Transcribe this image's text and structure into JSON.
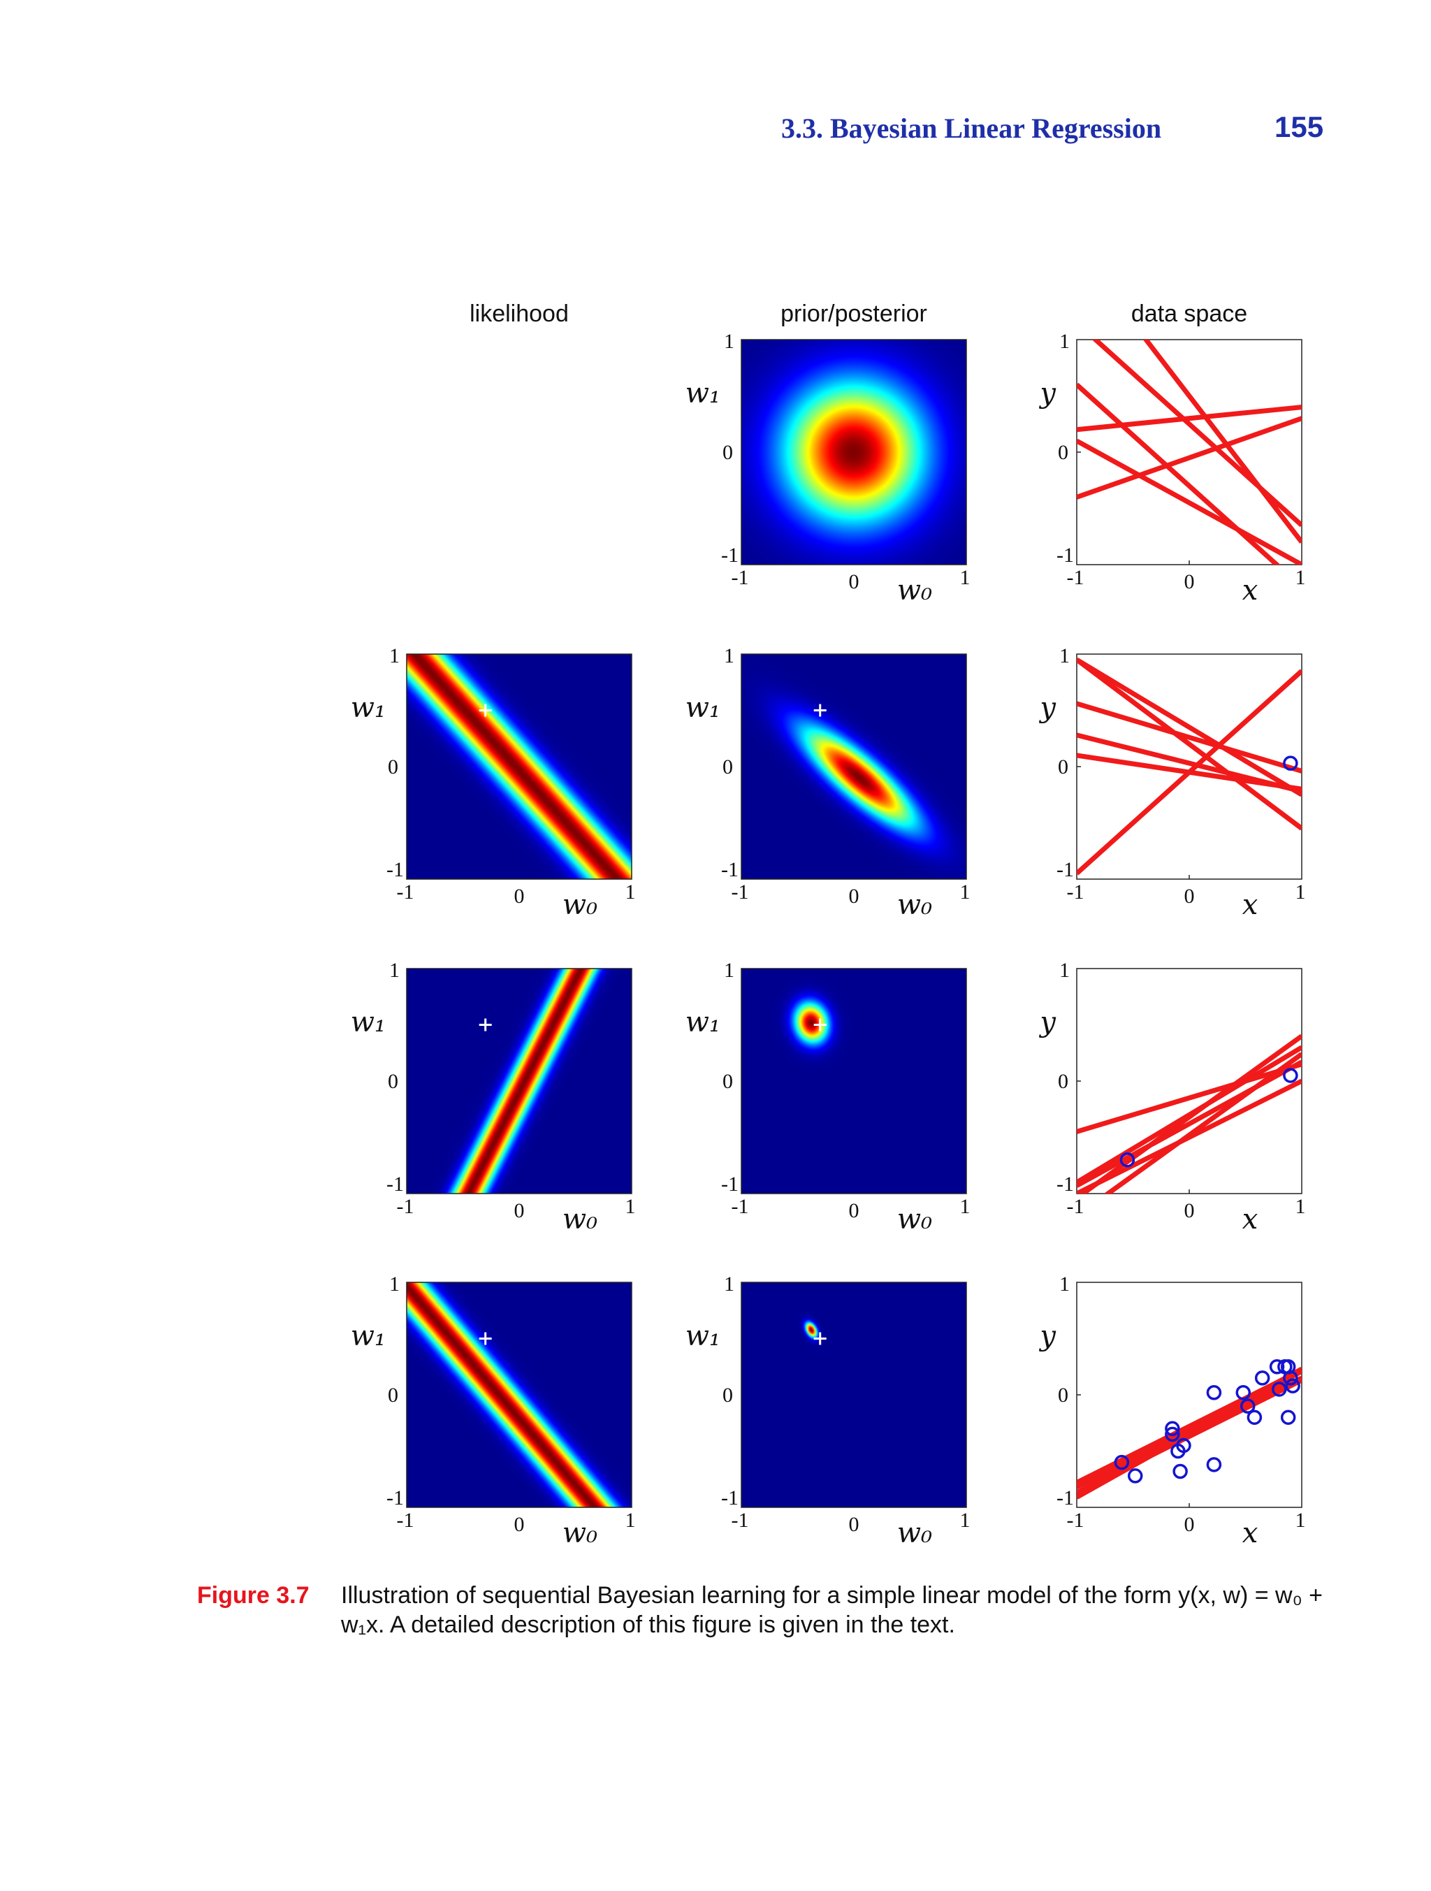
{
  "header": {
    "section_title": "3.3. Bayesian Linear Regression",
    "page_number": "155"
  },
  "figure": {
    "column_titles": [
      "likelihood",
      "prior/posterior",
      "data space"
    ],
    "tick_labels": {
      "min": "-1",
      "mid": "0",
      "max": "1"
    },
    "param_axes": {
      "x": "w₀",
      "y": "w₁"
    },
    "data_axes": {
      "x": "x",
      "y": "y"
    },
    "true_params": {
      "w0": -0.3,
      "w1": 0.5
    },
    "colormap": [
      "#00008f",
      "#0000ff",
      "#00ffff",
      "#ffff00",
      "#ff0000",
      "#800000"
    ],
    "line_color": "#f11a1a",
    "point_color": "#1414d0"
  },
  "chart_data": [
    {
      "type": "heatmap",
      "row": 0,
      "column": "prior/posterior",
      "xlim": [
        -1,
        1
      ],
      "ylim": [
        -1,
        1
      ],
      "gaussian": {
        "mean": [
          0,
          0
        ],
        "sx": 0.42,
        "sy": 0.42,
        "rho": 0
      },
      "marker": null
    },
    {
      "type": "line",
      "row": 0,
      "column": "data space",
      "xlim": [
        -1,
        1
      ],
      "ylim": [
        -1,
        1
      ],
      "lines": [
        [
          -0.3,
          -0.9
        ],
        [
          0.3,
          0.1
        ],
        [
          0.25,
          -0.9
        ],
        [
          -0.05,
          0.35
        ],
        [
          -0.45,
          -0.55
        ],
        [
          0.5,
          -1.3
        ]
      ],
      "points": []
    },
    {
      "type": "heatmap",
      "row": 1,
      "column": "likelihood",
      "xlim": [
        -1,
        1
      ],
      "ylim": [
        -1,
        1
      ],
      "band": {
        "a": 1,
        "b": 0.9,
        "c": 0.03,
        "sigma": 0.13
      },
      "marker": [
        -0.3,
        0.5
      ]
    },
    {
      "type": "heatmap",
      "row": 1,
      "column": "prior/posterior",
      "xlim": [
        -1,
        1
      ],
      "ylim": [
        -1,
        1
      ],
      "gaussian": {
        "mean": [
          0.05,
          -0.1
        ],
        "sx": 0.34,
        "sy": 0.3,
        "rho": -0.85
      },
      "marker": [
        -0.3,
        0.5
      ]
    },
    {
      "type": "line",
      "row": 1,
      "column": "data space",
      "xlim": [
        -1,
        1
      ],
      "ylim": [
        -1,
        1
      ],
      "lines": [
        [
          0.2,
          -0.75
        ],
        [
          0.35,
          -0.6
        ],
        [
          0.26,
          -0.3
        ],
        [
          0.03,
          -0.25
        ],
        [
          -0.05,
          -0.15
        ],
        [
          -0.05,
          0.9
        ]
      ],
      "points": [
        [
          0.9,
          0.03
        ]
      ]
    },
    {
      "type": "heatmap",
      "row": 2,
      "column": "likelihood",
      "xlim": [
        -1,
        1
      ],
      "ylim": [
        -1,
        1
      ],
      "band": {
        "a": 1,
        "b": -0.5,
        "c": -0.05,
        "sigma": 0.09
      },
      "marker": [
        -0.3,
        0.5
      ]
    },
    {
      "type": "heatmap",
      "row": 2,
      "column": "prior/posterior",
      "xlim": [
        -1,
        1
      ],
      "ylim": [
        -1,
        1
      ],
      "gaussian": {
        "mean": [
          -0.38,
          0.52
        ],
        "sx": 0.1,
        "sy": 0.12,
        "rho": -0.1
      },
      "marker": [
        -0.3,
        0.5
      ]
    },
    {
      "type": "line",
      "row": 2,
      "column": "data space",
      "xlim": [
        -1,
        1
      ],
      "ylim": [
        -1,
        1
      ],
      "lines": [
        [
          -0.15,
          0.3
        ],
        [
          -0.3,
          0.6
        ],
        [
          -0.32,
          0.72
        ],
        [
          -0.38,
          0.55
        ],
        [
          -0.5,
          0.5
        ],
        [
          -0.48,
          0.72
        ]
      ],
      "points": [
        [
          0.9,
          0.05
        ],
        [
          -0.55,
          -0.7
        ]
      ]
    },
    {
      "type": "heatmap",
      "row": 3,
      "column": "likelihood",
      "xlim": [
        -1,
        1
      ],
      "ylim": [
        -1,
        1
      ],
      "band": {
        "a": 1,
        "b": 0.85,
        "c": 0.18,
        "sigma": 0.1
      },
      "marker": [
        -0.3,
        0.5
      ]
    },
    {
      "type": "heatmap",
      "row": 3,
      "column": "prior/posterior",
      "xlim": [
        -1,
        1
      ],
      "ylim": [
        -1,
        1
      ],
      "gaussian": {
        "mean": [
          -0.38,
          0.58
        ],
        "sx": 0.035,
        "sy": 0.045,
        "rho": -0.4
      },
      "marker": [
        -0.3,
        0.5
      ]
    },
    {
      "type": "line",
      "row": 3,
      "column": "data space",
      "xlim": [
        -1,
        1
      ],
      "ylim": [
        -1,
        1
      ],
      "lines": [
        [
          -0.3,
          0.52
        ],
        [
          -0.33,
          0.48
        ],
        [
          -0.35,
          0.56
        ],
        [
          -0.37,
          0.5
        ],
        [
          -0.28,
          0.5
        ],
        [
          -0.32,
          0.55
        ]
      ],
      "points": [
        [
          -0.6,
          -0.6
        ],
        [
          -0.48,
          -0.72
        ],
        [
          -0.15,
          -0.3
        ],
        [
          -0.15,
          -0.35
        ],
        [
          -0.1,
          -0.5
        ],
        [
          -0.05,
          -0.45
        ],
        [
          -0.08,
          -0.68
        ],
        [
          0.22,
          -0.62
        ],
        [
          0.22,
          0.02
        ],
        [
          0.48,
          0.02
        ],
        [
          0.52,
          -0.1
        ],
        [
          0.58,
          -0.2
        ],
        [
          0.65,
          0.15
        ],
        [
          0.78,
          0.25
        ],
        [
          0.85,
          0.25
        ],
        [
          0.8,
          0.05
        ],
        [
          0.88,
          -0.2
        ],
        [
          0.92,
          0.08
        ],
        [
          0.9,
          0.15
        ],
        [
          0.88,
          0.25
        ]
      ]
    }
  ],
  "caption": {
    "label": "Figure 3.7",
    "text": "Illustration of sequential Bayesian learning for a simple linear model of the form y(x, w) = w₀ + w₁x. A detailed description of this figure is given in the text."
  }
}
